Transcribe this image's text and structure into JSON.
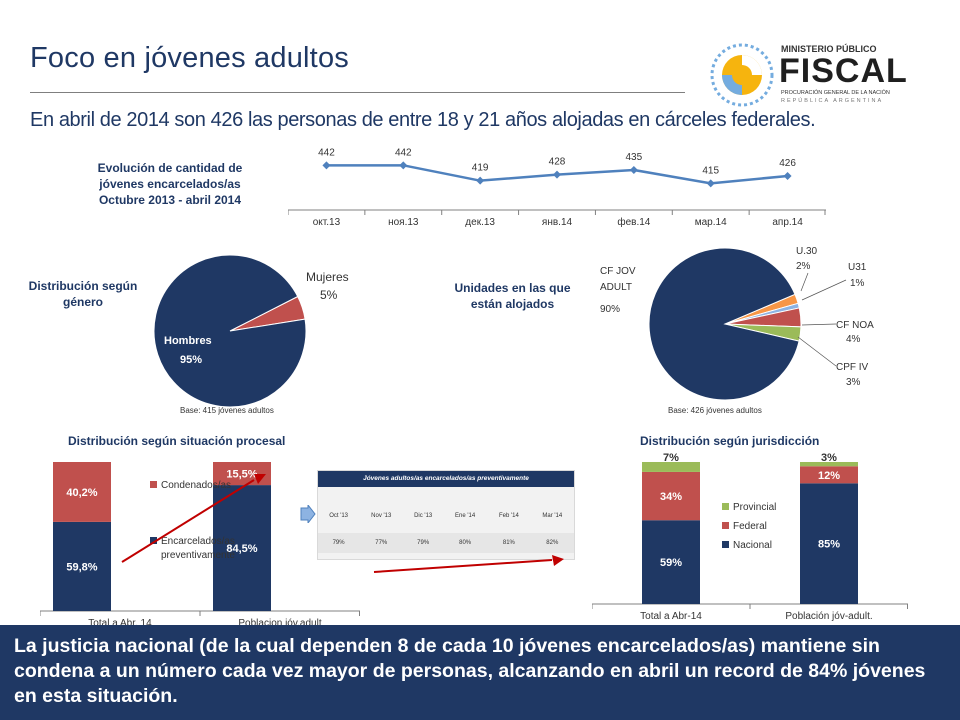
{
  "title": "Foco en jóvenes adultos",
  "subtitle": "En abril de 2014 son 426 las personas de entre 18 y 21 años alojadas en cárceles federales.",
  "logo": {
    "line1": "MINISTERIO PÚBLICO",
    "line2": "FISCAL",
    "line3": "PROCURACIÓN GENERAL DE LA NACIÓN",
    "line4": "REPÚBLICA ARGENTINA"
  },
  "footer": "La justicia nacional (de la cual dependen 8 de cada 10 jóvenes encarcelados/as) mantiene sin condena a un número cada vez mayor de personas, alcanzando en abril un record de 84% jóvenes en esta situación.",
  "colors": {
    "navy": "#1f3864",
    "red": "#c0504d",
    "green": "#9bbb59",
    "orange": "#f79646",
    "lightblue": "#8db3e2",
    "line": "#4f81bd"
  },
  "chart_data": [
    {
      "type": "line",
      "title": "Evolución de cantidad de jóvenes encarcelados/as Octubre 2013 - abril 2014",
      "categories": [
        "окт.13",
        "ноя.13",
        "дек.13",
        "янв.14",
        "фев.14",
        "мар.14",
        "апр.14"
      ],
      "values": [
        442,
        442,
        419,
        428,
        435,
        415,
        426
      ]
    },
    {
      "type": "pie",
      "title": "Distribución según género",
      "slices": [
        {
          "label": "Hombres",
          "value": 95,
          "display": "95%"
        },
        {
          "label": "Mujeres",
          "value": 5,
          "display": "5%"
        }
      ],
      "note": "Base: 415 jóvenes adultos"
    },
    {
      "type": "pie",
      "title": "Unidades en las que están alojados",
      "slices": [
        {
          "label": "CF JOV ADULT",
          "value": 90,
          "display": "90%"
        },
        {
          "label": "U.30",
          "value": 2,
          "display": "2%"
        },
        {
          "label": "U31",
          "value": 1,
          "display": "1%"
        },
        {
          "label": "CF NOA",
          "value": 4,
          "display": "4%"
        },
        {
          "label": "CPF IV",
          "value": 3,
          "display": "3%"
        }
      ],
      "note": "Base: 426 jóvenes adultos"
    },
    {
      "type": "bar",
      "stacked": true,
      "title": "Distribución según situación procesal",
      "categories": [
        "Total a Abr. 14",
        "Poblacion jóv.adult"
      ],
      "series": [
        {
          "name": "Encarcelados/as preventivamente",
          "values": [
            59.8,
            84.5
          ],
          "labels": [
            "59,8%",
            "84,5%"
          ]
        },
        {
          "name": "Condenados/as",
          "values": [
            40.2,
            15.5
          ],
          "labels": [
            "40,2%",
            "15,5%"
          ]
        }
      ]
    },
    {
      "type": "table",
      "title": "Jóvenes adultos/as encarcelados/as preventivamente",
      "columns": [
        "Oct '13",
        "Nov '13",
        "Dic '13",
        "Ene '14",
        "Feb '14",
        "Mar '14"
      ],
      "values": [
        "79%",
        "77%",
        "79%",
        "80%",
        "81%",
        "82%"
      ]
    },
    {
      "type": "bar",
      "stacked": true,
      "title": "Distribución según jurisdicción",
      "categories": [
        "Total a Abr-14",
        "Población jóv-adult."
      ],
      "series": [
        {
          "name": "Nacional",
          "values": [
            59,
            85
          ],
          "labels": [
            "59%",
            "85%"
          ]
        },
        {
          "name": "Federal",
          "values": [
            34,
            12
          ],
          "labels": [
            "34%",
            "12%"
          ]
        },
        {
          "name": "Provincial",
          "values": [
            7,
            3
          ],
          "labels": [
            "7%",
            "3%"
          ]
        }
      ]
    }
  ]
}
